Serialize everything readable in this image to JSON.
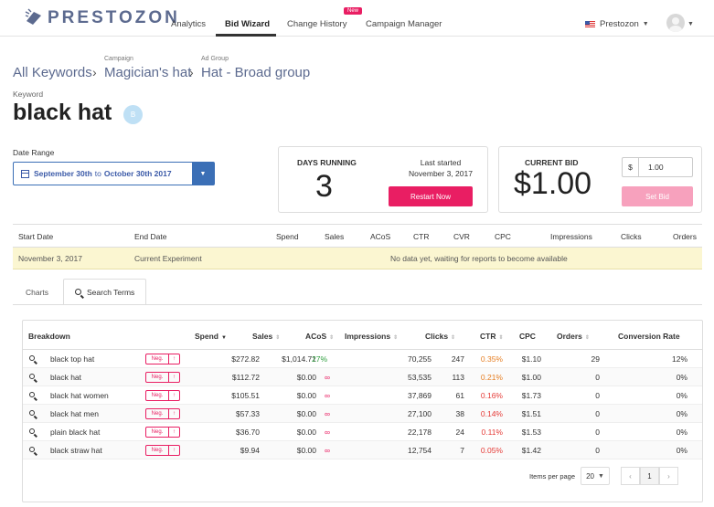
{
  "nav": {
    "logo_text": "PRESTOZON",
    "items": [
      {
        "label": "Analytics"
      },
      {
        "label": "Bid Wizard"
      },
      {
        "label": "Change History"
      },
      {
        "label": "Campaign Manager"
      }
    ],
    "new_badge": "New",
    "account": "Prestozon"
  },
  "breadcrumb": {
    "root": "All Keywords",
    "campaign_label": "Campaign",
    "campaign": "Magician's hat",
    "adgroup_label": "Ad Group",
    "adgroup": "Hat - Broad group"
  },
  "keyword": {
    "label": "Keyword",
    "title": "black hat",
    "badge": "B"
  },
  "date_range": {
    "label": "Date Range",
    "start": "September 30th",
    "to": "to",
    "end": "October 30th 2017"
  },
  "days_card": {
    "title": "DAYS RUNNING",
    "value": "3",
    "last_started_label": "Last started",
    "last_started_date": "November 3, 2017",
    "restart_button": "Restart Now"
  },
  "bid_card": {
    "title": "CURRENT BID",
    "value": "$1.00",
    "currency": "$",
    "input_value": "1.00",
    "set_button": "Set Bid"
  },
  "experiment_table": {
    "headers": [
      "Start Date",
      "End Date",
      "Spend",
      "Sales",
      "ACoS",
      "CTR",
      "CVR",
      "CPC",
      "Impressions",
      "Clicks",
      "Orders"
    ],
    "row": {
      "start": "November 3, 2017",
      "end": "Current Experiment",
      "message": "No data yet, waiting for reports to become available"
    }
  },
  "tabs": [
    {
      "label": "Charts"
    },
    {
      "label": "Search Terms"
    }
  ],
  "search_terms": {
    "headers": [
      "Breakdown",
      "Spend",
      "Sales",
      "ACoS",
      "Impressions",
      "Clicks",
      "CTR",
      "CPC",
      "Orders",
      "Conversion Rate"
    ],
    "neg_label": "Neg.",
    "rows": [
      {
        "term": "black top hat",
        "spend": "$272.82",
        "sales": "$1,014.71",
        "acos": "27%",
        "impressions": "70,255",
        "clicks": "247",
        "ctr": "0.35%",
        "cpc": "$1.10",
        "orders": "29",
        "conv": "12%"
      },
      {
        "term": "black hat",
        "spend": "$112.72",
        "sales": "$0.00",
        "acos": "∞",
        "impressions": "53,535",
        "clicks": "113",
        "ctr": "0.21%",
        "cpc": "$1.00",
        "orders": "0",
        "conv": "0%"
      },
      {
        "term": "black hat women",
        "spend": "$105.51",
        "sales": "$0.00",
        "acos": "∞",
        "impressions": "37,869",
        "clicks": "61",
        "ctr": "0.16%",
        "cpc": "$1.73",
        "orders": "0",
        "conv": "0%"
      },
      {
        "term": "black hat men",
        "spend": "$57.33",
        "sales": "$0.00",
        "acos": "∞",
        "impressions": "27,100",
        "clicks": "38",
        "ctr": "0.14%",
        "cpc": "$1.51",
        "orders": "0",
        "conv": "0%"
      },
      {
        "term": "plain black hat",
        "spend": "$36.70",
        "sales": "$0.00",
        "acos": "∞",
        "impressions": "22,178",
        "clicks": "24",
        "ctr": "0.11%",
        "cpc": "$1.53",
        "orders": "0",
        "conv": "0%"
      },
      {
        "term": "black straw hat",
        "spend": "$9.94",
        "sales": "$0.00",
        "acos": "∞",
        "impressions": "12,754",
        "clicks": "7",
        "ctr": "0.05%",
        "cpc": "$1.42",
        "orders": "0",
        "conv": "0%"
      }
    ],
    "pagination": {
      "items_per_page_label": "Items per page",
      "items_per_page": "20",
      "current_page": "1"
    }
  },
  "colors": {
    "accent": "#e91e63",
    "brand": "#5c6a8f",
    "primary_button": "#3b6fb6",
    "acos_good": "#2e9e3e"
  }
}
